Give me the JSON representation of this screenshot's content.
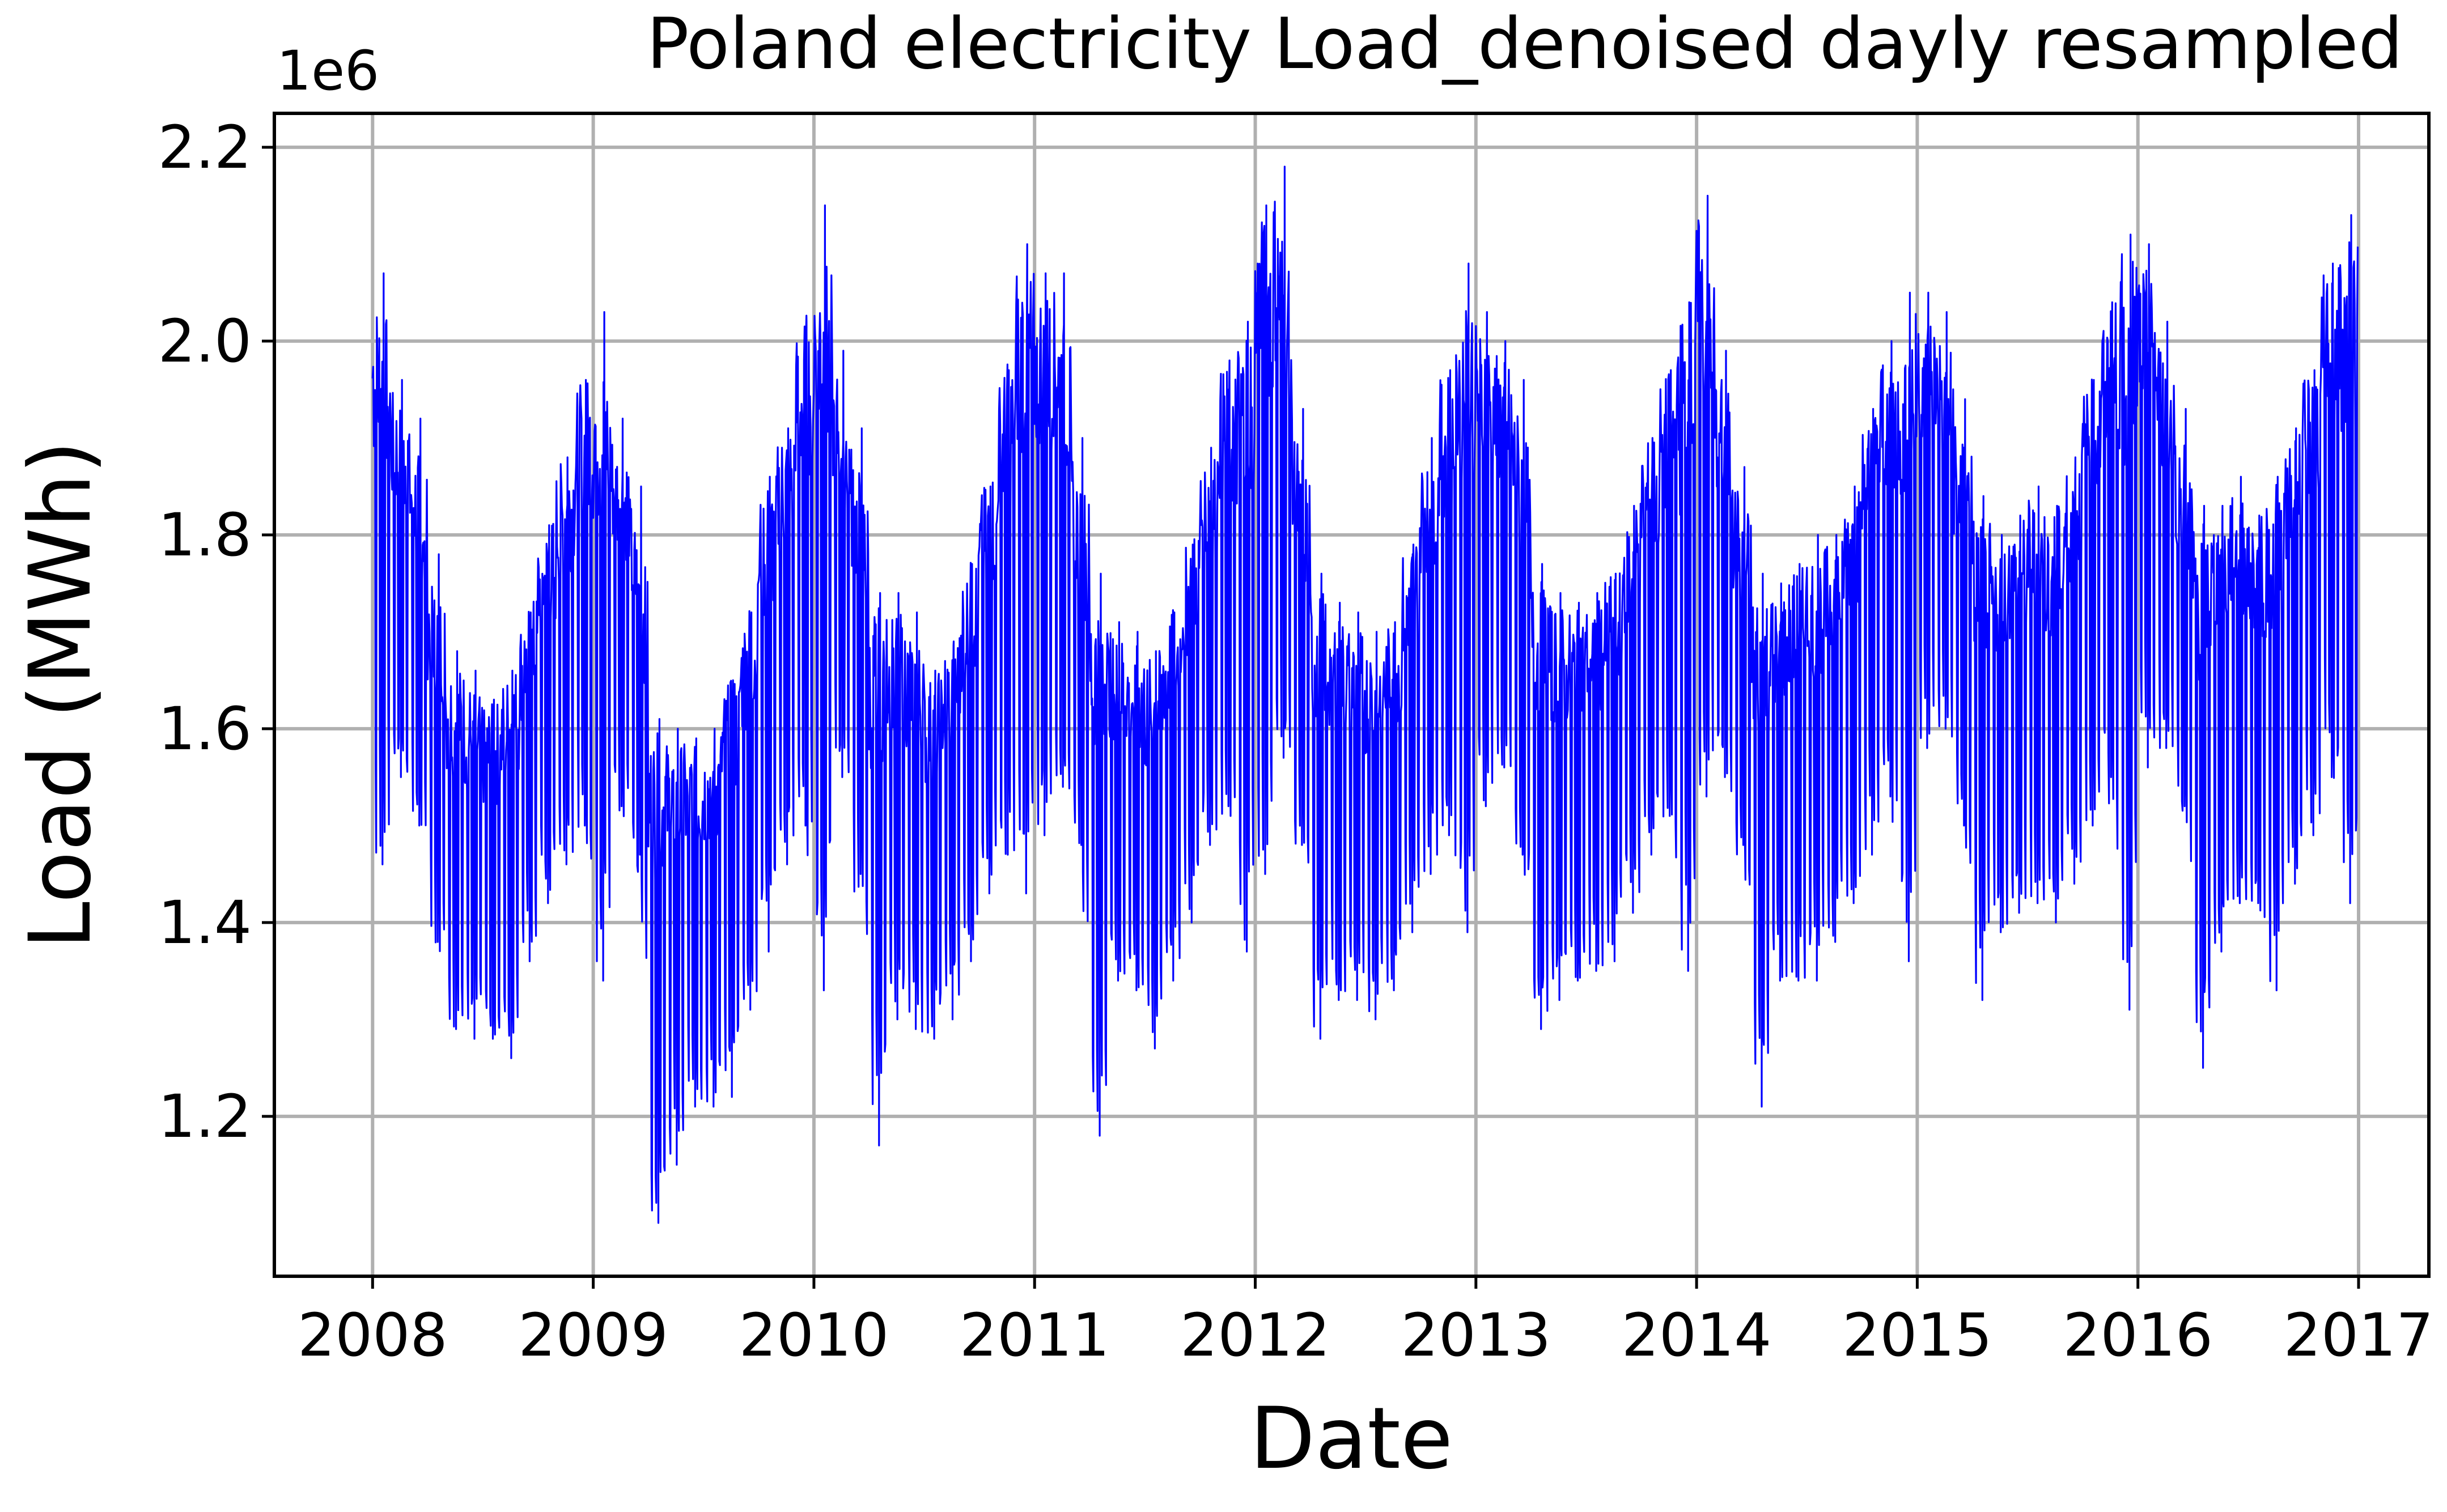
{
  "chart_data": {
    "type": "line",
    "title": "Poland electricity Load_denoised dayly resampled",
    "xlabel": "Date",
    "ylabel": "Load (MWh)",
    "y_scale_label": "1e6",
    "x_ticks": [
      "2008",
      "2009",
      "2010",
      "2011",
      "2012",
      "2013",
      "2014",
      "2015",
      "2016",
      "2017"
    ],
    "y_ticks": [
      "1.2",
      "1.4",
      "1.6",
      "1.8",
      "2.0",
      "2.2"
    ],
    "y_tick_values": [
      1.2,
      1.4,
      1.6,
      1.8,
      2.0,
      2.2
    ],
    "xlim": [
      "2007-07-21",
      "2017-04-26"
    ],
    "ylim": [
      1.035,
      2.235
    ],
    "grid": true,
    "color": "#0000ff",
    "series": [
      {
        "values_note_unit": "x in years, y in MWh x 1e6",
        "monthly_envelope": [
          [
            "2008-01",
            1.46,
            2.07
          ],
          [
            "2008-02",
            1.55,
            1.96
          ],
          [
            "2008-03",
            1.5,
            1.92
          ],
          [
            "2008-04",
            1.38,
            1.78
          ],
          [
            "2008-05",
            1.29,
            1.68
          ],
          [
            "2008-06",
            1.28,
            1.66
          ],
          [
            "2008-07",
            1.28,
            1.63
          ],
          [
            "2008-08",
            1.26,
            1.66
          ],
          [
            "2008-09",
            1.36,
            1.72
          ],
          [
            "2008-10",
            1.42,
            1.81
          ],
          [
            "2008-11",
            1.46,
            1.88
          ],
          [
            "2008-12",
            1.5,
            1.96
          ],
          [
            "2009-01",
            1.34,
            2.03
          ],
          [
            "2009-02",
            1.52,
            1.92
          ],
          [
            "2009-03",
            1.47,
            1.85
          ],
          [
            "2009-04",
            1.09,
            1.61
          ],
          [
            "2009-05",
            1.15,
            1.6
          ],
          [
            "2009-06",
            1.21,
            1.59
          ],
          [
            "2009-07",
            1.21,
            1.6
          ],
          [
            "2009-08",
            1.22,
            1.65
          ],
          [
            "2009-09",
            1.31,
            1.72
          ],
          [
            "2009-10",
            1.37,
            1.86
          ],
          [
            "2009-11",
            1.46,
            1.91
          ],
          [
            "2009-12",
            1.5,
            2.02
          ],
          [
            "2010-01",
            1.33,
            2.14
          ],
          [
            "2010-02",
            1.55,
            1.99
          ],
          [
            "2010-03",
            1.45,
            1.91
          ],
          [
            "2010-04",
            1.17,
            1.74
          ],
          [
            "2010-05",
            1.3,
            1.74
          ],
          [
            "2010-06",
            1.29,
            1.72
          ],
          [
            "2010-07",
            1.28,
            1.66
          ],
          [
            "2010-08",
            1.3,
            1.69
          ],
          [
            "2010-09",
            1.36,
            1.77
          ],
          [
            "2010-10",
            1.43,
            1.85
          ],
          [
            "2010-11",
            1.47,
            1.97
          ],
          [
            "2010-12",
            1.43,
            2.1
          ],
          [
            "2011-01",
            1.49,
            2.07
          ],
          [
            "2011-02",
            1.54,
            2.07
          ],
          [
            "2011-03",
            1.48,
            1.9
          ],
          [
            "2011-04",
            1.18,
            1.76
          ],
          [
            "2011-05",
            1.34,
            1.71
          ],
          [
            "2011-06",
            1.33,
            1.7
          ],
          [
            "2011-07",
            1.27,
            1.68
          ],
          [
            "2011-08",
            1.34,
            1.72
          ],
          [
            "2011-09",
            1.4,
            1.79
          ],
          [
            "2011-10",
            1.48,
            1.89
          ],
          [
            "2011-11",
            1.52,
            1.98
          ],
          [
            "2011-12",
            1.37,
            2.02
          ],
          [
            "2012-01",
            1.45,
            2.14
          ],
          [
            "2012-02",
            1.57,
            2.18
          ],
          [
            "2012-03",
            1.48,
            1.93
          ],
          [
            "2012-04",
            1.28,
            1.76
          ],
          [
            "2012-05",
            1.32,
            1.73
          ],
          [
            "2012-06",
            1.32,
            1.72
          ],
          [
            "2012-07",
            1.3,
            1.7
          ],
          [
            "2012-08",
            1.33,
            1.71
          ],
          [
            "2012-09",
            1.39,
            1.79
          ],
          [
            "2012-10",
            1.45,
            1.9
          ],
          [
            "2012-11",
            1.49,
            1.97
          ],
          [
            "2012-12",
            1.39,
            2.08
          ],
          [
            "2013-01",
            1.52,
            2.03
          ],
          [
            "2013-02",
            1.56,
            2.0
          ],
          [
            "2013-03",
            1.47,
            1.96
          ],
          [
            "2013-04",
            1.29,
            1.77
          ],
          [
            "2013-05",
            1.32,
            1.74
          ],
          [
            "2013-06",
            1.34,
            1.73
          ],
          [
            "2013-07",
            1.35,
            1.74
          ],
          [
            "2013-08",
            1.36,
            1.76
          ],
          [
            "2013-09",
            1.41,
            1.83
          ],
          [
            "2013-10",
            1.47,
            1.9
          ],
          [
            "2013-11",
            1.51,
            1.97
          ],
          [
            "2013-12",
            1.35,
            2.04
          ],
          [
            "2014-01",
            1.53,
            2.15
          ],
          [
            "2014-02",
            1.55,
            1.99
          ],
          [
            "2014-03",
            1.48,
            1.87
          ],
          [
            "2014-04",
            1.21,
            1.76
          ],
          [
            "2014-05",
            1.34,
            1.75
          ],
          [
            "2014-06",
            1.34,
            1.77
          ],
          [
            "2014-07",
            1.34,
            1.8
          ],
          [
            "2014-08",
            1.38,
            1.8
          ],
          [
            "2014-09",
            1.42,
            1.85
          ],
          [
            "2014-10",
            1.47,
            1.93
          ],
          [
            "2014-11",
            1.53,
            2.0
          ],
          [
            "2014-12",
            1.36,
            2.05
          ],
          [
            "2015-01",
            1.58,
            2.05
          ],
          [
            "2015-02",
            1.6,
            2.03
          ],
          [
            "2015-03",
            1.5,
            1.94
          ],
          [
            "2015-04",
            1.32,
            1.84
          ],
          [
            "2015-05",
            1.39,
            1.8
          ],
          [
            "2015-06",
            1.41,
            1.82
          ],
          [
            "2015-07",
            1.42,
            1.85
          ],
          [
            "2015-08",
            1.4,
            1.83
          ],
          [
            "2015-09",
            1.44,
            1.88
          ],
          [
            "2015-10",
            1.5,
            1.96
          ],
          [
            "2015-11",
            1.55,
            2.04
          ],
          [
            "2015-12",
            1.31,
            2.11
          ],
          [
            "2016-01",
            1.56,
            2.1
          ],
          [
            "2016-02",
            1.58,
            2.02
          ],
          [
            "2016-03",
            1.52,
            1.93
          ],
          [
            "2016-04",
            1.25,
            1.83
          ],
          [
            "2016-05",
            1.37,
            1.83
          ],
          [
            "2016-06",
            1.42,
            1.86
          ],
          [
            "2016-07",
            1.42,
            1.82
          ],
          [
            "2016-08",
            1.33,
            1.86
          ],
          [
            "2016-09",
            1.44,
            1.91
          ],
          [
            "2016-10",
            1.49,
            1.97
          ],
          [
            "2016-11",
            1.55,
            2.08
          ],
          [
            "2016-12",
            1.42,
            2.13
          ]
        ]
      }
    ]
  }
}
